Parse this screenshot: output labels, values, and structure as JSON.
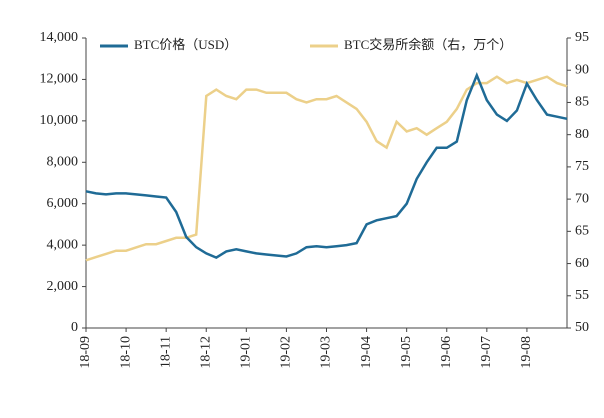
{
  "chart_data": {
    "type": "line",
    "categories": [
      "18-09",
      null,
      null,
      null,
      "18-10",
      null,
      null,
      null,
      "18-11",
      null,
      null,
      null,
      "18-12",
      null,
      null,
      null,
      "19-01",
      null,
      null,
      null,
      "19-02",
      null,
      null,
      null,
      "19-03",
      null,
      null,
      null,
      "19-04",
      null,
      null,
      null,
      "19-05",
      null,
      null,
      null,
      "19-06",
      null,
      null,
      null,
      "19-07",
      null,
      null,
      null,
      "19-08",
      null,
      null,
      null,
      null
    ],
    "series": [
      {
        "name": "BTC价格（USD）",
        "color": "#1f6b96",
        "values": [
          6600,
          6500,
          6450,
          6500,
          6500,
          6450,
          6400,
          6350,
          6300,
          5600,
          4400,
          3900,
          3600,
          3400,
          3700,
          3800,
          3700,
          3600,
          3550,
          3500,
          3450,
          3600,
          3900,
          3950,
          3900,
          3950,
          4000,
          4100,
          5000,
          5200,
          5300,
          5400,
          6000,
          7200,
          8000,
          8700,
          8700,
          9000,
          11000,
          12200,
          11000,
          10300,
          10000,
          10500,
          11800,
          11000,
          10300,
          10200,
          10100
        ]
      },
      {
        "name": "BTC交易所余额（右，万个）",
        "color": "#ecd08a",
        "axis": "y2",
        "values": [
          60.5,
          61,
          61.5,
          62,
          62,
          62.5,
          63,
          63,
          63.5,
          64,
          64,
          64.5,
          86,
          87,
          86,
          85.5,
          87,
          87,
          86.5,
          86.5,
          86.5,
          85.5,
          85,
          85.5,
          85.5,
          86,
          85,
          84,
          82,
          79,
          78,
          82,
          80.5,
          81,
          80,
          81,
          82,
          84,
          87,
          88,
          88,
          89,
          88,
          88.5,
          88,
          88.5,
          89,
          88,
          87.5
        ]
      }
    ],
    "ylim": [
      0,
      14000
    ],
    "yticks": [
      0,
      {
        "value": 2000,
        "label": "2,000"
      },
      {
        "value": 4000,
        "label": "4,000"
      },
      {
        "value": 6000,
        "label": "6,000"
      },
      {
        "value": 8000,
        "label": "8,000"
      },
      {
        "value": 10000,
        "label": "10,000"
      },
      {
        "value": 12000,
        "label": "12,000"
      },
      {
        "value": 14000,
        "label": "14,000"
      }
    ],
    "y2lim": [
      50,
      95
    ],
    "y2ticks": [
      50,
      55,
      60,
      65,
      70,
      75,
      80,
      85,
      90,
      95
    ],
    "legend": "top"
  }
}
